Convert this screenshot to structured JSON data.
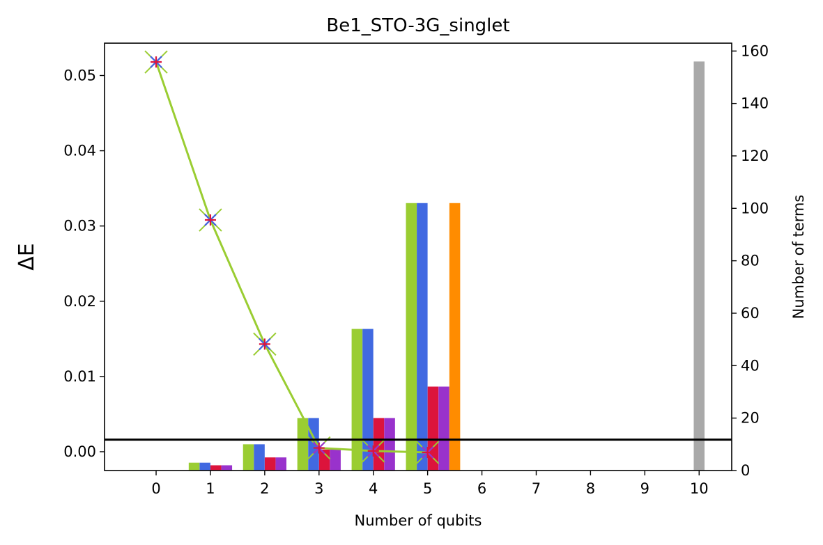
{
  "chart_data": {
    "type": "bar",
    "title": "Be1_STO-3G_singlet",
    "xlabel": "Number of qubits",
    "ylabel_left": "ΔE",
    "ylabel_right": "Number of terms",
    "x_ticks": [
      0,
      1,
      2,
      3,
      4,
      5,
      6,
      7,
      8,
      9,
      10
    ],
    "x_range": [
      -0.95,
      10.6
    ],
    "ylim_left": [
      -0.0025,
      0.0543
    ],
    "yticks_left": [
      "0.00",
      "0.01",
      "0.02",
      "0.03",
      "0.04",
      "0.05"
    ],
    "ylim_right": [
      0,
      163
    ],
    "yticks_right": [
      0,
      20,
      40,
      60,
      80,
      100,
      120,
      140,
      160
    ],
    "grid": false,
    "colors": {
      "green": "#9acd32",
      "blue": "#4169e1",
      "red": "#dc143c",
      "purple": "#9932cc",
      "orange": "#ff8c00",
      "gray": "#a9a9a9",
      "threshold": "#000000"
    },
    "term_bars": [
      {
        "color": "green",
        "offset": -0.3,
        "x": [
          0,
          1,
          2,
          3,
          4,
          5
        ],
        "values": [
          0,
          3,
          10,
          20,
          54,
          102
        ]
      },
      {
        "color": "blue",
        "offset": -0.1,
        "x": [
          0,
          1,
          2,
          3,
          4,
          5
        ],
        "values": [
          0,
          3,
          10,
          20,
          54,
          102
        ]
      },
      {
        "color": "red",
        "offset": 0.1,
        "x": [
          0,
          1,
          2,
          3,
          4,
          5
        ],
        "values": [
          0,
          2,
          5,
          8,
          20,
          32
        ]
      },
      {
        "color": "purple",
        "offset": 0.3,
        "x": [
          0,
          1,
          2,
          3,
          4,
          5
        ],
        "values": [
          0,
          2,
          5,
          8,
          20,
          32
        ]
      },
      {
        "color": "orange",
        "offset": 0.5,
        "x": [
          5
        ],
        "values": [
          102
        ]
      },
      {
        "color": "gray",
        "offset": 0.0,
        "x": [
          10
        ],
        "values": [
          156
        ]
      }
    ],
    "energy_line": {
      "color": "green",
      "x": [
        0,
        1,
        2,
        3,
        4,
        5
      ],
      "values": [
        0.0518,
        0.0308,
        0.0143,
        0.0005,
        0.0001,
        -0.0001
      ]
    },
    "markers": [
      {
        "color": "purple",
        "symbol": "x",
        "x": [
          0,
          1,
          2,
          3,
          4,
          5
        ],
        "values": [
          0.0518,
          0.0308,
          0.0143,
          0.0005,
          0.0001,
          -0.0001
        ]
      },
      {
        "color": "blue",
        "symbol": "x",
        "x": [
          0,
          1,
          2
        ],
        "values": [
          0.0518,
          0.0308,
          0.0143
        ]
      },
      {
        "color": "red",
        "symbol": "+",
        "x": [
          0,
          1,
          2,
          3,
          4,
          5
        ],
        "values": [
          0.0518,
          0.0308,
          0.0143,
          0.0005,
          0.0001,
          -0.0001
        ]
      }
    ],
    "threshold_y": 0.0016
  }
}
